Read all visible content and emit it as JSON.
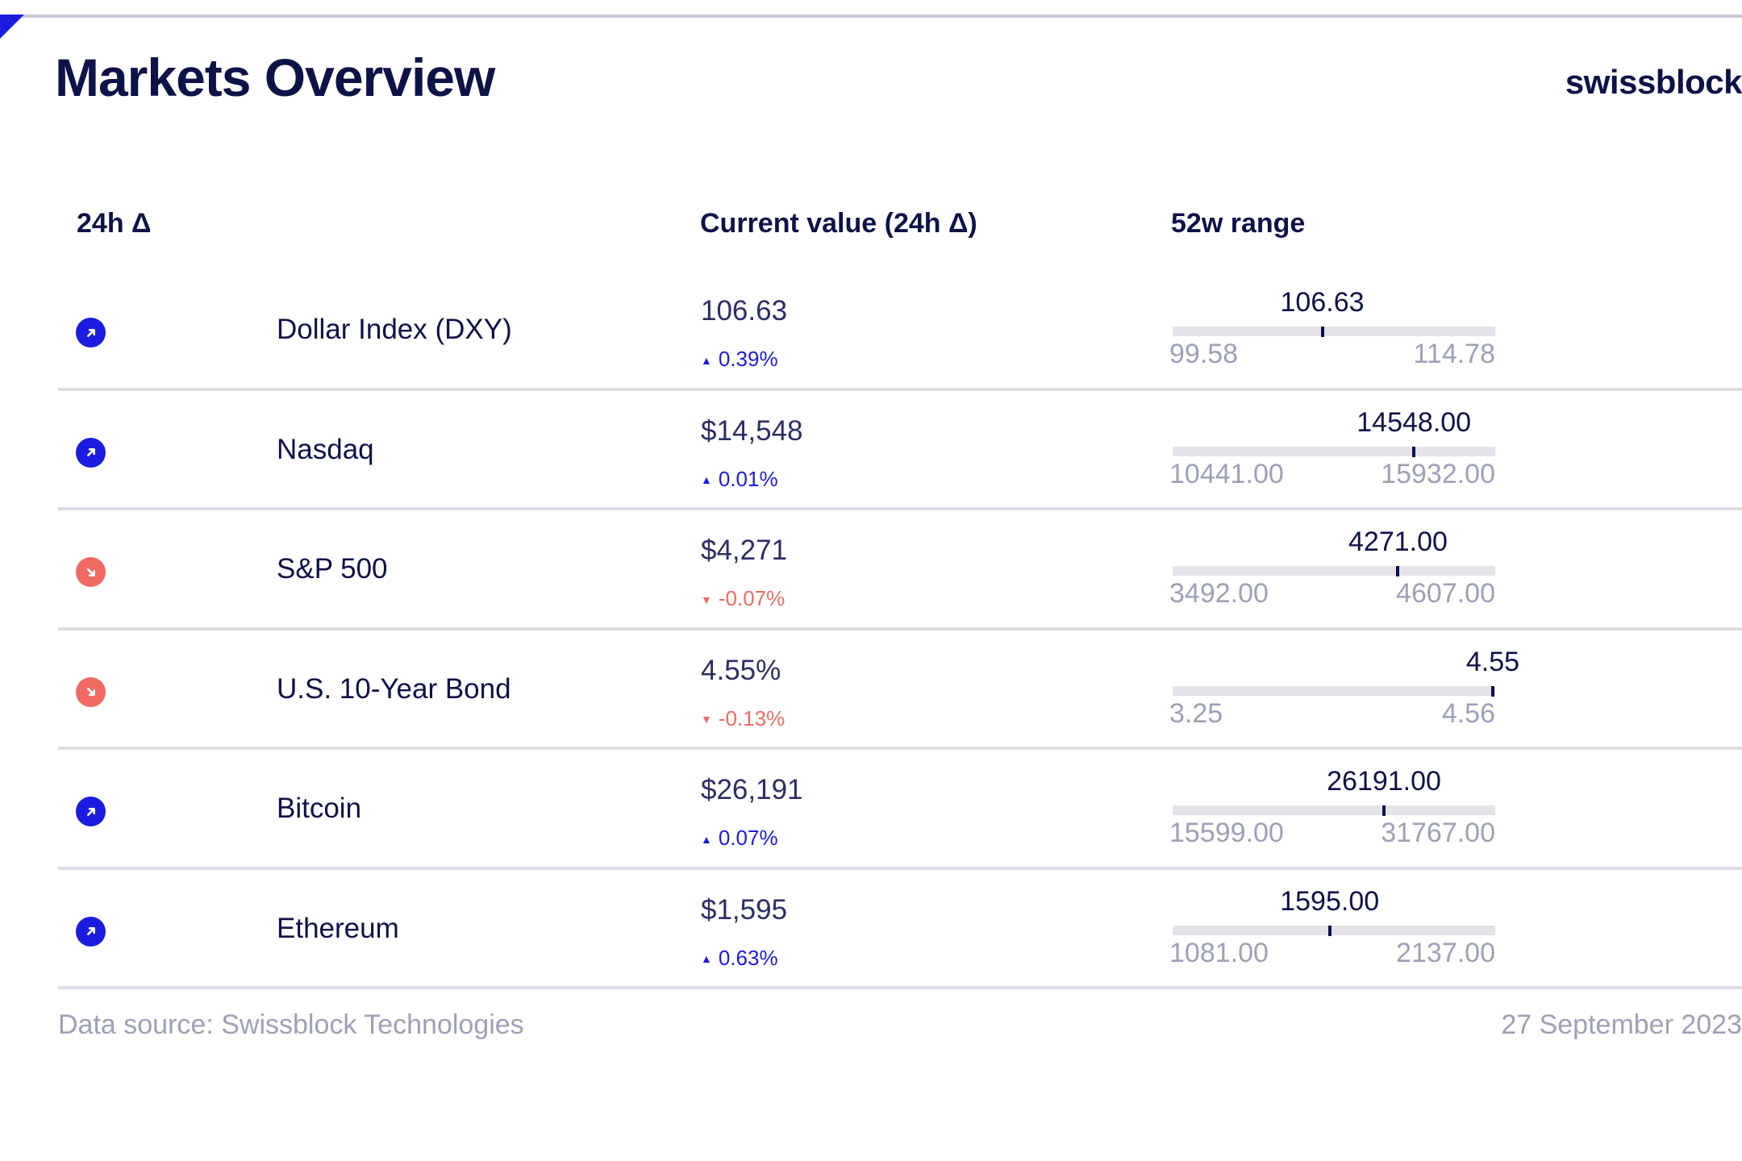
{
  "header": {
    "title": "Markets Overview",
    "brand": "swissblock",
    "accent_color": "#1c1ce0"
  },
  "columns": {
    "delta": "24h Δ",
    "current": "Current value (24h Δ)",
    "range": "52w range"
  },
  "colors": {
    "up": "#1c1ce0",
    "down": "#f06a62",
    "text": "#0d1347",
    "muted": "#9da1b7",
    "track": "#e3e4e8"
  },
  "rows": [
    {
      "name": "Dollar Index (DXY)",
      "trend": "up",
      "trend_icon": "arrow-up-right-icon",
      "value": "106.63",
      "change": "0.39%",
      "range_low": "99.58",
      "range_high": "114.78",
      "range_current": "106.63",
      "position_value": 106.63,
      "low_value": 99.58,
      "high_value": 114.78
    },
    {
      "name": "Nasdaq",
      "trend": "up",
      "trend_icon": "arrow-up-right-icon",
      "value": "$14,548",
      "change": "0.01%",
      "range_low": "10441.00",
      "range_high": "15932.00",
      "range_current": "14548.00",
      "position_value": 14548,
      "low_value": 10441,
      "high_value": 15932
    },
    {
      "name": "S&P 500",
      "trend": "down",
      "trend_icon": "arrow-down-right-icon",
      "value": "$4,271",
      "change": "-0.07%",
      "range_low": "3492.00",
      "range_high": "4607.00",
      "range_current": "4271.00",
      "position_value": 4271,
      "low_value": 3492,
      "high_value": 4607
    },
    {
      "name": "U.S. 10-Year Bond",
      "trend": "down",
      "trend_icon": "arrow-down-right-icon",
      "value": "4.55%",
      "change": "-0.13%",
      "range_low": "3.25",
      "range_high": "4.56",
      "range_current": "4.55",
      "position_value": 4.55,
      "low_value": 3.25,
      "high_value": 4.56
    },
    {
      "name": "Bitcoin",
      "trend": "up",
      "trend_icon": "arrow-up-right-icon",
      "value": "$26,191",
      "change": "0.07%",
      "range_low": "15599.00",
      "range_high": "31767.00",
      "range_current": "26191.00",
      "position_value": 26191,
      "low_value": 15599,
      "high_value": 31767
    },
    {
      "name": "Ethereum",
      "trend": "up",
      "trend_icon": "arrow-up-right-icon",
      "value": "$1,595",
      "change": "0.63%",
      "range_low": "1081.00",
      "range_high": "2137.00",
      "range_current": "1595.00",
      "position_value": 1595,
      "low_value": 1081,
      "high_value": 2137
    }
  ],
  "footer": {
    "source": "Data source: Swissblock Technologies",
    "date": "27 September 2023"
  }
}
